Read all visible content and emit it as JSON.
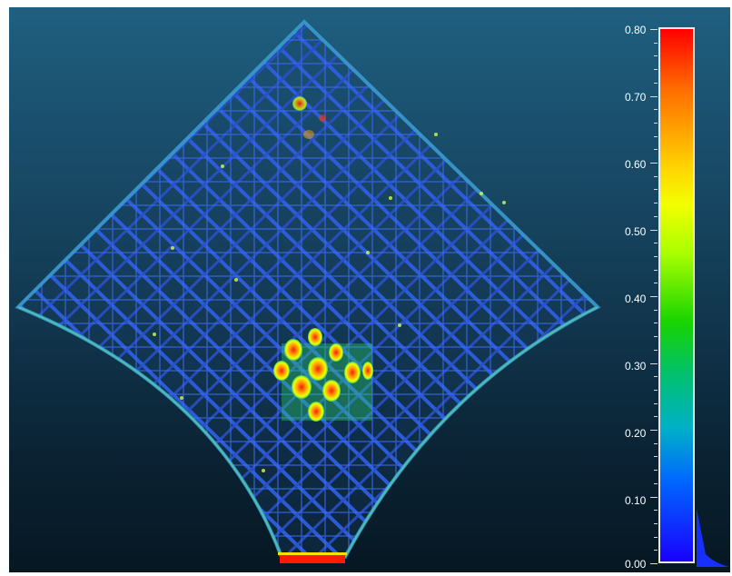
{
  "colorbar": {
    "ticks": [
      "0.80",
      "0.70",
      "0.60",
      "0.50",
      "0.40",
      "0.30",
      "0.20",
      "0.10",
      "0.00"
    ],
    "colors": [
      "#ff0000",
      "#ff6a00",
      "#ffd400",
      "#f2ff00",
      "#aaff00",
      "#18d400",
      "#00c070",
      "#00b0c8",
      "#0066ff",
      "#1a00ff"
    ]
  },
  "scene": {
    "background_top": "#1f5f80",
    "background_bottom": "#061722",
    "structure_color": "#2b54d6",
    "highlight_colors": [
      "#ff2200",
      "#ffd400",
      "#32d36a"
    ]
  }
}
